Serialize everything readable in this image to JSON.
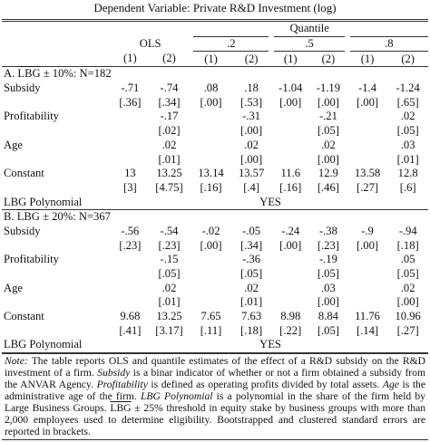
{
  "title": "Dependent Variable: Private R&D Investment (log)",
  "header": {
    "group": "Quantile",
    "models": [
      "OLS",
      ".2",
      ".5",
      ".8"
    ],
    "columns": [
      "(1)",
      "(2)",
      "(1)",
      "(2)",
      "(1)",
      "(2)",
      "(1)",
      "(2)"
    ]
  },
  "panels": [
    {
      "label": {
        "prefix": "A.",
        "overlined": "LBG",
        "suffix": "± 10%: N=182"
      },
      "rows": [
        {
          "name": "Subsidy",
          "coef": [
            "-.71",
            "-.74",
            ".08",
            ".18",
            "-1.04",
            "-1.19",
            "-1.4",
            "-1.24"
          ],
          "se": [
            "[.36]",
            "[.34]",
            "[.00]",
            "[.53]",
            "[.00]",
            "[.00]",
            "[.00]",
            "[.65]"
          ]
        },
        {
          "name": "Profitability",
          "coef": [
            null,
            "-.17",
            null,
            "-.31",
            null,
            "-.21",
            null,
            ".02"
          ],
          "se": [
            null,
            "[.02]",
            null,
            "[.00]",
            null,
            "[.05]",
            null,
            "[.05]"
          ]
        },
        {
          "name": "Age",
          "coef": [
            null,
            ".02",
            null,
            ".02",
            null,
            ".02",
            null,
            ".03"
          ],
          "se": [
            null,
            "[.01]",
            null,
            "[.00]",
            null,
            "[.00]",
            null,
            "[.01]"
          ]
        },
        {
          "name": "Constant",
          "coef": [
            "13",
            "13.25",
            "13.14",
            "13.57",
            "11.6",
            "12.9",
            "13.58",
            "12.8"
          ],
          "se": [
            "[3]",
            "[4.75]",
            "[.16]",
            "[.4]",
            "[.16]",
            "[.46]",
            "[.27]",
            "[.6]"
          ]
        }
      ],
      "polynomial": {
        "name": "LBG Polynomial",
        "value": "YES"
      }
    },
    {
      "label": {
        "prefix": "B.",
        "overlined": "LBG",
        "suffix": "± 20%: N=367"
      },
      "rows": [
        {
          "name": "Subsidy",
          "coef": [
            "-.56",
            "-.54",
            "-.02",
            "-.05",
            "-.24",
            "-.38",
            "-.9",
            "-.94"
          ],
          "se": [
            "[.23]",
            "[.23]",
            "[.00]",
            "[.34]",
            "[.00]",
            "[.23]",
            "[.00]",
            "[.18]"
          ]
        },
        {
          "name": "Profitability",
          "coef": [
            null,
            "-.15",
            null,
            "-.36",
            null,
            "-.19",
            null,
            ".05"
          ],
          "se": [
            null,
            "[.05]",
            null,
            "[.05]",
            null,
            "[.05]",
            null,
            "[.05]"
          ]
        },
        {
          "name": "Age",
          "coef": [
            null,
            ".02",
            null,
            ".02",
            null,
            ".03",
            null,
            ".02"
          ],
          "se": [
            null,
            "[.01]",
            null,
            "[.01]",
            null,
            "[.00]",
            null,
            "[.00]"
          ]
        },
        {
          "name": "Constant",
          "coef": [
            "9.68",
            "13.25",
            "7.65",
            "7.63",
            "8.98",
            "8.84",
            "11.76",
            "10.96"
          ],
          "se": [
            "[.41]",
            "[3.17]",
            "[.11]",
            "[.18]",
            "[.22]",
            "[.05]",
            "[.14]",
            "[.27]"
          ]
        }
      ],
      "polynomial": {
        "name": "LBG Polynomial",
        "value": "YES"
      }
    }
  ],
  "note": [
    {
      "text": "Note:",
      "style": "italic"
    },
    {
      "text": " The table reports OLS and quantile estimates of the effect of a R&D subsidy on the R&D investment of a firm. ",
      "style": "normal"
    },
    {
      "text": "Subsidy",
      "style": "italic"
    },
    {
      "text": " is a binar indicator of whether or not a firm obtained a subsidy from the ANVAR Agency. ",
      "style": "normal"
    },
    {
      "text": "Profitability",
      "style": "italic"
    },
    {
      "text": " is defined as operating profits divided by total assets. ",
      "style": "normal"
    },
    {
      "text": "Age",
      "style": "italic"
    },
    {
      "text": " is the administrative age of the firm. ",
      "style": "normal"
    },
    {
      "text": "LBG Polynomial",
      "style": "italic"
    },
    {
      "text": " is a polynomial in the share of the firm held by Large Business Groups. ",
      "style": "normal"
    },
    {
      "text": "LBG",
      "style": "overline"
    },
    {
      "text": " ± 25% threshold in equity stake by business groups with more than 2,000 employees used to determine eligibility. Bootstrapped and clustered standard errors are reported in brackets.",
      "style": "normal"
    }
  ]
}
